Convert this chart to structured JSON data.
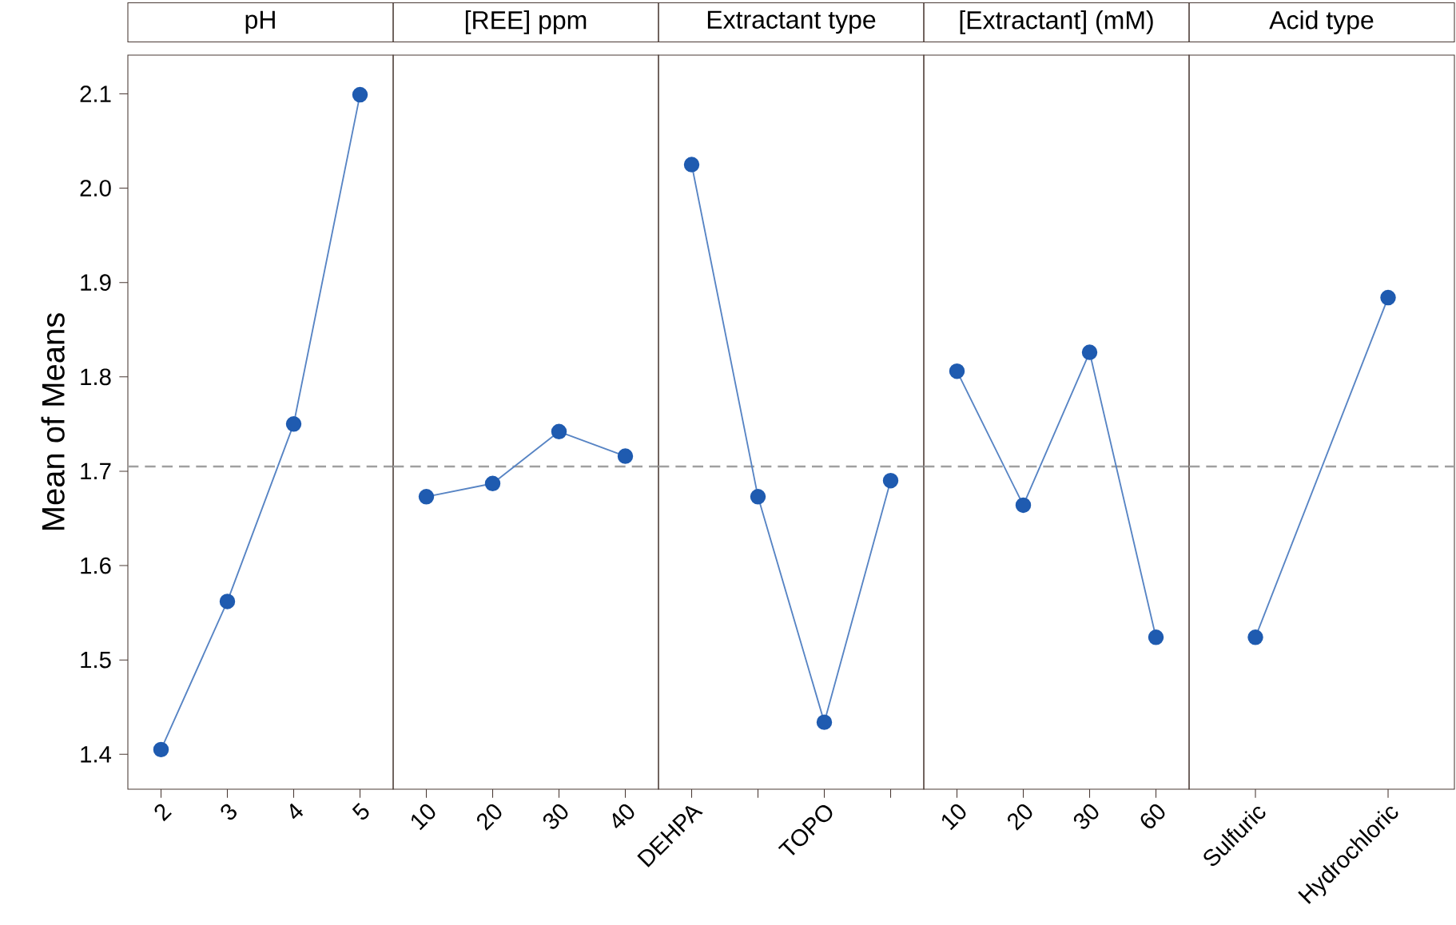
{
  "chart_data": [
    {
      "type": "line",
      "title": "pH",
      "ylabel": "Mean of Means",
      "categories": [
        "2",
        "3",
        "4",
        "5"
      ],
      "values": [
        1.405,
        1.562,
        1.75,
        2.099
      ],
      "color": "#1f5bb0",
      "marker": "circle",
      "line_style": "solid",
      "ylim": [
        1.363,
        2.141
      ],
      "yticks": [
        1.4,
        1.5,
        1.6,
        1.7,
        1.8,
        1.9,
        {
          "value": 2.0,
          "label": "2.0"
        },
        2.1
      ],
      "ref_lines": [
        {
          "axis": "y",
          "value": 1.705,
          "color": "#a0a0a0",
          "line_style": "dashed"
        }
      ]
    },
    {
      "type": "line",
      "title": "[REE] ppm",
      "categories": [
        "10",
        "20",
        "30",
        "40"
      ],
      "values": [
        1.673,
        1.687,
        1.742,
        1.716
      ],
      "color": "#1f5bb0",
      "marker": "circle",
      "line_style": "solid",
      "ylim": [
        1.363,
        2.141
      ],
      "tick_labels": "x",
      "ref_lines": [
        {
          "axis": "y",
          "value": 1.705,
          "color": "#a0a0a0",
          "line_style": "dashed"
        }
      ]
    },
    {
      "type": "line",
      "title": "Extractant type",
      "categories": [
        "DEHPA",
        null,
        "TOPO",
        null
      ],
      "values": [
        2.025,
        1.673,
        1.434,
        1.69
      ],
      "color": "#1f5bb0",
      "marker": "circle",
      "line_style": "solid",
      "ylim": [
        1.363,
        2.141
      ],
      "tick_labels": "x",
      "ref_lines": [
        {
          "axis": "y",
          "value": 1.705,
          "color": "#a0a0a0",
          "line_style": "dashed"
        }
      ]
    },
    {
      "type": "line",
      "title": "[Extractant] (mM)",
      "categories": [
        "10",
        "20",
        "30",
        "60"
      ],
      "values": [
        1.806,
        1.664,
        1.826,
        1.524
      ],
      "color": "#1f5bb0",
      "marker": "circle",
      "line_style": "solid",
      "ylim": [
        1.363,
        2.141
      ],
      "tick_labels": "x",
      "ref_lines": [
        {
          "axis": "y",
          "value": 1.705,
          "color": "#a0a0a0",
          "line_style": "dashed"
        }
      ]
    },
    {
      "type": "line",
      "title": "Acid type",
      "categories": [
        "Sulfuric",
        "Hydrochloric"
      ],
      "values": [
        1.524,
        1.884
      ],
      "color": "#1f5bb0",
      "marker": "circle",
      "line_style": "solid",
      "ylim": [
        1.363,
        2.141
      ],
      "tick_labels": "x",
      "ref_lines": [
        {
          "axis": "y",
          "value": 1.705,
          "color": "#a0a0a0",
          "line_style": "dashed"
        }
      ]
    }
  ]
}
